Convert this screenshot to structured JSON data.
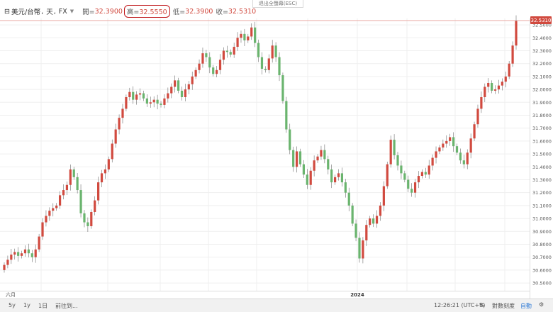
{
  "legend": {
    "symbol": "美元/台幣",
    "interval": "天",
    "exchange": "FX",
    "open_label": "開=",
    "open": "32.3900",
    "high_label": "高=",
    "high": "32.5550",
    "low_label": "低=",
    "low": "32.3900",
    "close_label": "收=",
    "close": "32.5310"
  },
  "esc_hint": "退出全螢幕(ESC)",
  "last_price_label": "32.5310",
  "colors": {
    "up": "#d14a3f",
    "down": "#6ab46e",
    "highlight": "#c0171b",
    "price_tag": "#d14a3f"
  },
  "toolbar": {
    "range_5y": "5y",
    "range_1y": "1y",
    "range_1d": "1日",
    "goto": "前往到...",
    "time": "12:26:21 (UTC+8)",
    "percent": "%",
    "log": "對數刻度",
    "auto": "自動"
  },
  "chart_data": {
    "type": "candlestick",
    "y_ticks": [
      "32.5000",
      "32.4000",
      "32.3000",
      "32.2000",
      "32.1000",
      "32.0000",
      "31.9000",
      "31.8000",
      "31.7000",
      "31.6000",
      "31.5000",
      "31.4000",
      "31.3000",
      "31.2000",
      "31.1000",
      "31.0000",
      "30.9000",
      "30.8000",
      "30.7000",
      "30.6000",
      "30.5000"
    ],
    "x_labels": [
      "六月",
      "2024"
    ],
    "ylim": [
      30.44,
      32.55
    ],
    "close_series": [
      30.64,
      30.68,
      30.72,
      30.74,
      30.71,
      30.73,
      30.76,
      30.73,
      30.7,
      30.76,
      30.86,
      30.97,
      31.02,
      31.06,
      31.08,
      31.1,
      31.18,
      31.22,
      31.26,
      31.38,
      31.32,
      31.22,
      31.04,
      30.97,
      30.94,
      31.05,
      31.14,
      31.28,
      31.35,
      31.38,
      31.46,
      31.58,
      31.69,
      31.78,
      31.85,
      31.94,
      31.98,
      31.92,
      31.96,
      31.97,
      31.93,
      31.89,
      31.9,
      31.92,
      31.89,
      31.88,
      31.93,
      31.97,
      32.02,
      32.07,
      31.99,
      31.94,
      32.0,
      32.04,
      32.1,
      32.15,
      32.2,
      32.28,
      32.25,
      32.17,
      32.12,
      32.15,
      32.23,
      32.3,
      32.29,
      32.27,
      32.33,
      32.4,
      32.43,
      32.38,
      32.41,
      32.48,
      32.36,
      32.25,
      32.16,
      32.15,
      32.24,
      32.34,
      32.25,
      32.11,
      31.91,
      31.69,
      31.53,
      31.4,
      31.52,
      31.42,
      31.34,
      31.26,
      31.37,
      31.45,
      31.48,
      31.53,
      31.46,
      31.38,
      31.28,
      31.32,
      31.35,
      31.28,
      31.2,
      31.1,
      30.96,
      30.85,
      30.69,
      30.83,
      30.95,
      31.0,
      30.96,
      31.02,
      31.1,
      31.25,
      31.42,
      31.61,
      31.49,
      31.41,
      31.35,
      31.3,
      31.23,
      31.2,
      31.28,
      31.33,
      31.36,
      31.34,
      31.41,
      31.47,
      31.52,
      31.55,
      31.58,
      31.6,
      31.63,
      31.56,
      31.51,
      31.45,
      31.42,
      31.51,
      31.62,
      31.73,
      31.85,
      31.94,
      32.02,
      32.05,
      31.99,
      32.0,
      32.03,
      32.06,
      32.1,
      32.2,
      32.34,
      32.53
    ]
  }
}
